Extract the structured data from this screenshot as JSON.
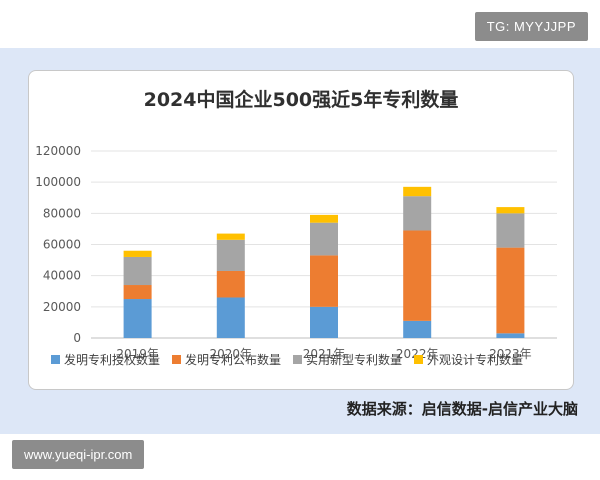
{
  "watermark_top": "TG: MYYJJPP",
  "watermark_bottom": "www.yueqi-ipr.com",
  "source": "数据来源：启信数据-启信产业大脑",
  "colors": {
    "invention_grant": "#5b9bd5",
    "invention_publish": "#ed7d31",
    "utility_model": "#a5a5a5",
    "design": "#ffc000",
    "panel_bg": "#dde7f7"
  },
  "chart_data": {
    "type": "bar",
    "stacked": true,
    "title": "2024中国企业500强近5年专利数量",
    "categories": [
      "2019年",
      "2020年",
      "2021年",
      "2022年",
      "2023年"
    ],
    "series": [
      {
        "name": "发明专利授权数量",
        "color": "#5b9bd5",
        "values": [
          25000,
          26000,
          20000,
          11000,
          3000
        ]
      },
      {
        "name": "发明专利公布数量",
        "color": "#ed7d31",
        "values": [
          9000,
          17000,
          33000,
          58000,
          55000
        ]
      },
      {
        "name": "实用新型专利数量",
        "color": "#a5a5a5",
        "values": [
          18000,
          20000,
          21000,
          22000,
          22000
        ]
      },
      {
        "name": "外观设计专利数量",
        "color": "#ffc000",
        "values": [
          4000,
          4000,
          5000,
          6000,
          4000
        ]
      }
    ],
    "y_ticks": [
      "0",
      "20000",
      "40000",
      "60000",
      "80000",
      "100000",
      "120000"
    ],
    "ylim": [
      0,
      120000
    ],
    "grid": true,
    "legend_position": "bottom"
  }
}
